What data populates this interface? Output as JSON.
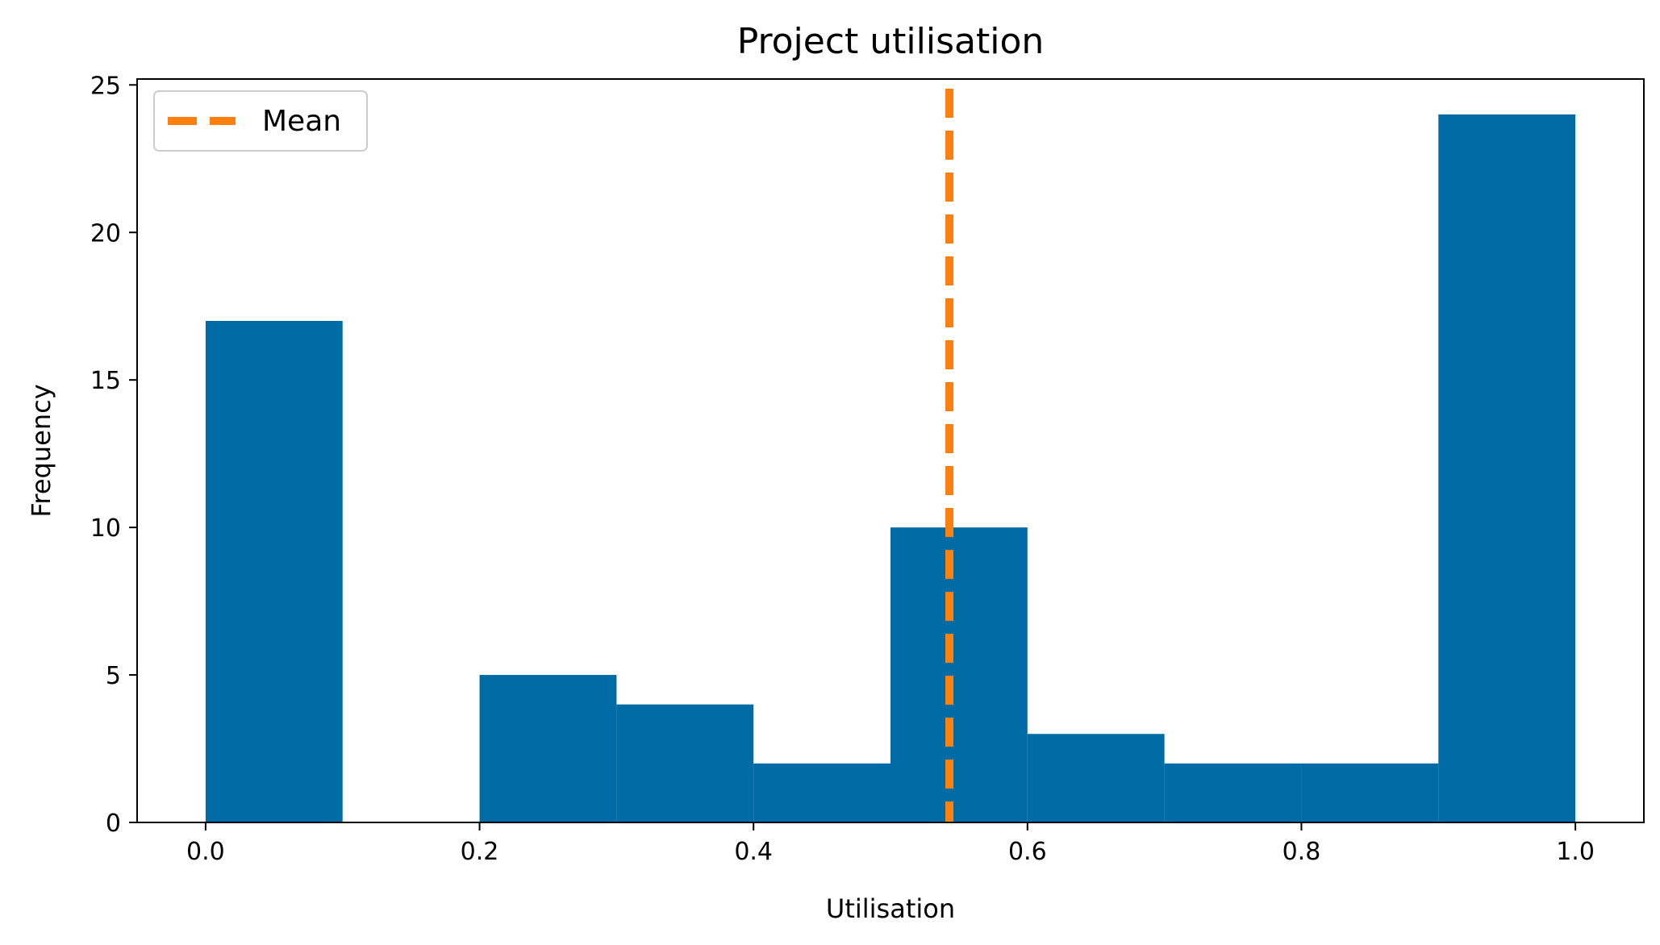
{
  "chart_data": {
    "type": "bar",
    "title": "Project utilisation",
    "xlabel": "Utilisation",
    "ylabel": "Frequency",
    "xlim": [
      -0.05,
      1.05
    ],
    "ylim": [
      0,
      25.2
    ],
    "x_ticks": [
      "0.0",
      "0.2",
      "0.4",
      "0.6",
      "0.8",
      "1.0"
    ],
    "y_ticks": [
      "0",
      "5",
      "10",
      "15",
      "20",
      "25"
    ],
    "bin_edges": [
      0.0,
      0.1,
      0.2,
      0.3,
      0.4,
      0.5,
      0.6,
      0.7,
      0.8,
      0.9,
      1.0
    ],
    "counts": [
      17,
      0,
      5,
      4,
      2,
      10,
      3,
      2,
      2,
      24
    ],
    "mean": 0.543,
    "legend": {
      "entries": [
        "Mean"
      ],
      "placement": "top-left"
    },
    "grid": false,
    "colors": {
      "bars": "#006ba4",
      "mean_line": "#ff800e"
    }
  }
}
